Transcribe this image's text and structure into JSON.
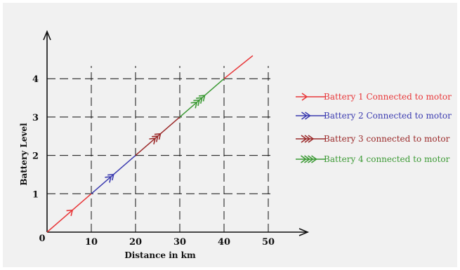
{
  "chart_data": {
    "type": "line",
    "title": "",
    "xlabel": "Distance in km",
    "ylabel": "Battery Level",
    "origin_label": "0",
    "xlim": [
      0,
      60
    ],
    "ylim": [
      0,
      4.9
    ],
    "x_ticks": [
      10,
      20,
      30,
      40,
      50
    ],
    "y_ticks": [
      1,
      2,
      3,
      4
    ],
    "x_tick_labels": [
      "10",
      "20",
      "30",
      "40",
      "50"
    ],
    "y_tick_labels": [
      "1",
      "2",
      "3",
      "4"
    ],
    "grid": "dashed",
    "legend_position": "right",
    "series": [
      {
        "name": "Battery 1 Connected to motor",
        "color": "#e8383a",
        "arrows": 1,
        "points": [
          [
            0,
            0
          ],
          [
            10,
            1
          ],
          [
            10,
            1
          ]
        ],
        "extra_segment": [
          [
            40,
            4
          ],
          [
            46.5,
            4.6
          ]
        ],
        "arrow_at": [
          5.5,
          0.55
        ]
      },
      {
        "name": "Battery 2 Connected to motor",
        "color": "#3b3bb0",
        "arrows": 2,
        "points": [
          [
            10,
            1
          ],
          [
            20,
            2
          ]
        ],
        "arrow_at": [
          14.5,
          1.45
        ]
      },
      {
        "name": "Battery 3 connected to motor",
        "color": "#9b2a2a",
        "arrows": 3,
        "points": [
          [
            20,
            2
          ],
          [
            30,
            3
          ]
        ],
        "arrow_at": [
          24.8,
          2.48
        ]
      },
      {
        "name": "Battery 4 connected to motor",
        "color": "#3c9a35",
        "arrows": 4,
        "points": [
          [
            30,
            3
          ],
          [
            40,
            4
          ]
        ],
        "arrow_at": [
          34.5,
          3.45
        ]
      }
    ]
  }
}
